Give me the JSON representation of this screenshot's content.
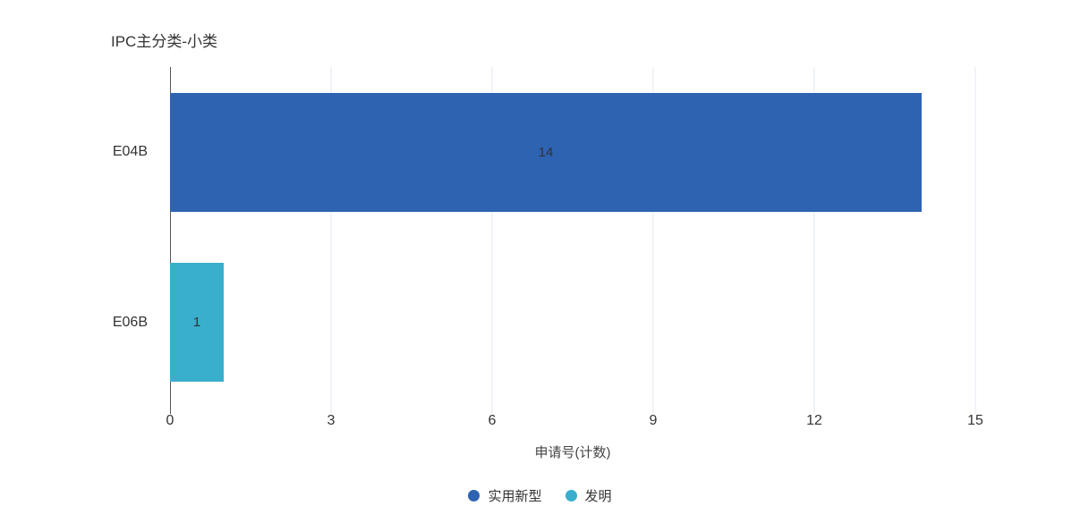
{
  "chart_data": {
    "type": "bar",
    "orientation": "horizontal",
    "title": "IPC主分类-小类",
    "xlabel": "申请号(计数)",
    "ylabel": "",
    "xlim": [
      0,
      15
    ],
    "xticks": [
      "0",
      "3",
      "6",
      "9",
      "12",
      "15"
    ],
    "xtick_values": [
      0,
      3,
      6,
      9,
      12,
      15
    ],
    "grid": true,
    "legend_position": "bottom",
    "categories": [
      "E04B",
      "E06B"
    ],
    "series": [
      {
        "name": "实用新型",
        "color": "#2d63b1"
      },
      {
        "name": "发明",
        "color": "#39aecd"
      }
    ],
    "bars": [
      {
        "category": "E04B",
        "series": "实用新型",
        "value": 14,
        "label": "14",
        "color": "#2d63b1"
      },
      {
        "category": "E06B",
        "series": "发明",
        "value": 1,
        "label": "1",
        "color": "#39aecd"
      }
    ]
  },
  "colors": {
    "axis_line": "#555555",
    "gridline": "#e2e8f0",
    "text": "#333333",
    "axis_title_text": "#444444"
  }
}
